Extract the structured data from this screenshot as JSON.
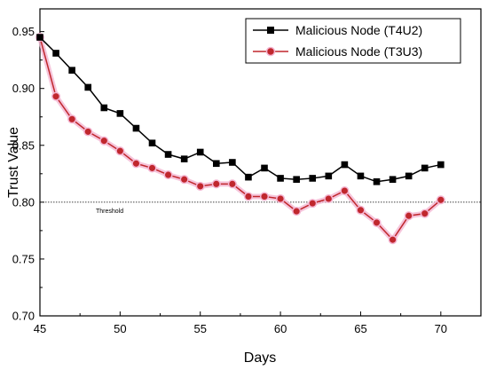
{
  "chart_data": {
    "type": "line",
    "xlabel": "Days",
    "ylabel": "Trust Value",
    "xlim": [
      45,
      72.5
    ],
    "ylim": [
      0.7,
      0.97
    ],
    "xticks": [
      45,
      50,
      55,
      60,
      65,
      70
    ],
    "xtick_labels": [
      "45",
      "50",
      "55",
      "60",
      "65",
      "70"
    ],
    "yticks": [
      0.7,
      0.75,
      0.8,
      0.85,
      0.9,
      0.95
    ],
    "ytick_labels": [
      "0.70",
      "0.75",
      "0.80",
      "0.85",
      "0.90",
      "0.95"
    ],
    "grid": false,
    "legend_position": "top-right",
    "threshold": {
      "value": 0.8,
      "label": "Threshold"
    },
    "x": [
      45,
      46,
      47,
      48,
      49,
      50,
      51,
      52,
      53,
      54,
      55,
      56,
      57,
      58,
      59,
      60,
      61,
      62,
      63,
      64,
      65,
      66,
      67,
      68,
      69,
      70
    ],
    "series": [
      {
        "name": "Malicious Node (T4U2)",
        "color": "#000000",
        "marker": "square",
        "values": [
          0.945,
          0.931,
          0.916,
          0.901,
          0.883,
          0.878,
          0.865,
          0.852,
          0.842,
          0.838,
          0.844,
          0.834,
          0.835,
          0.822,
          0.83,
          0.821,
          0.82,
          0.821,
          0.823,
          0.833,
          0.823,
          0.818,
          0.82,
          0.823,
          0.83,
          0.833
        ]
      },
      {
        "name": "Malicious Node (T3U3)",
        "color": "#c0272d",
        "marker": "circle",
        "values": [
          0.945,
          0.893,
          0.873,
          0.862,
          0.854,
          0.845,
          0.834,
          0.83,
          0.824,
          0.82,
          0.814,
          0.816,
          0.816,
          0.805,
          0.805,
          0.803,
          0.792,
          0.799,
          0.803,
          0.81,
          0.793,
          0.782,
          0.767,
          0.788,
          0.79,
          0.802
        ]
      }
    ]
  }
}
